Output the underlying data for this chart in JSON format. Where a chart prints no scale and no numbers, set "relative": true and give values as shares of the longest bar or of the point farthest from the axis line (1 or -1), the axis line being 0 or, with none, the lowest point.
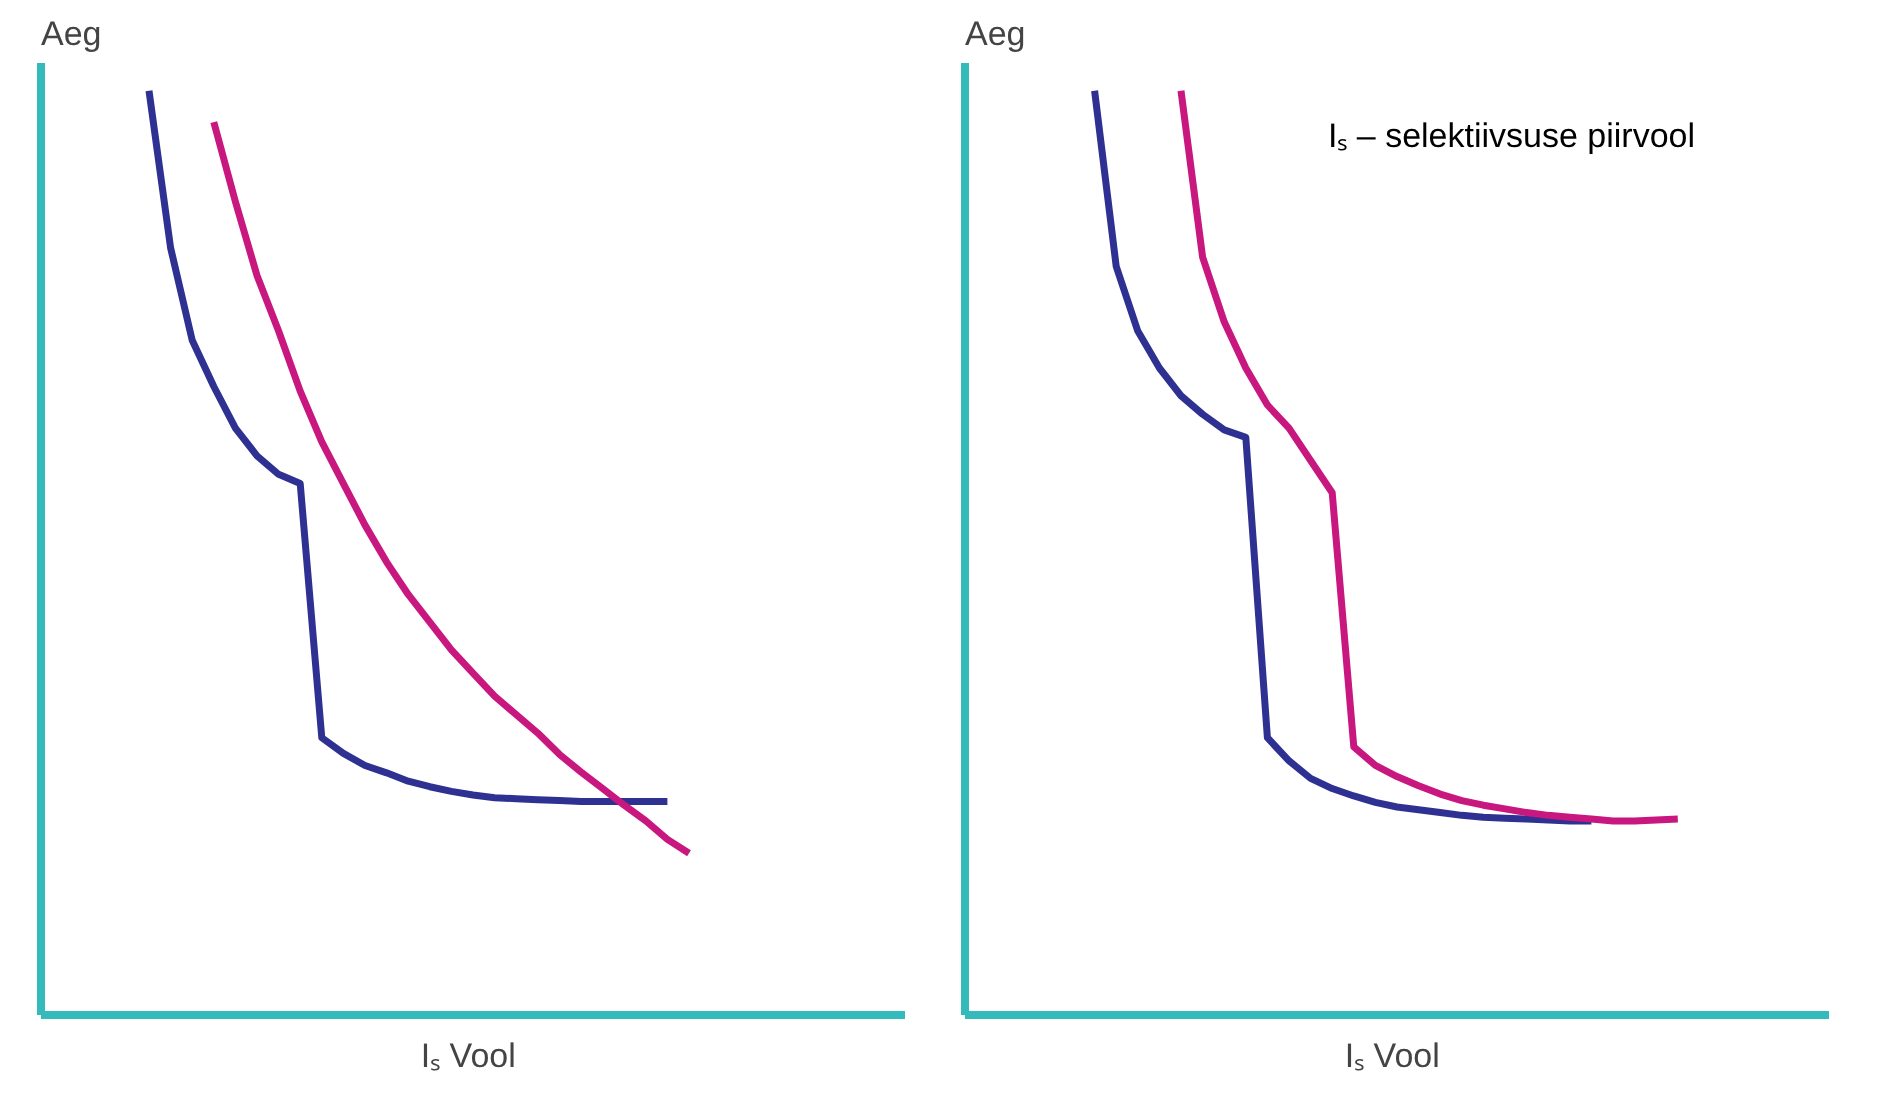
{
  "chart_data": [
    {
      "type": "line",
      "relative": true,
      "ylabel": "Aeg",
      "xlabel": "Iₛ  Vool",
      "tick_labels": false,
      "categories": [
        null,
        null,
        null,
        null,
        null,
        null,
        null,
        null,
        null,
        null,
        null,
        null,
        null,
        null,
        null,
        null,
        null,
        null,
        null,
        null,
        null,
        null,
        null,
        null,
        null,
        null,
        null,
        null,
        null,
        null,
        null,
        null,
        null,
        null,
        null,
        null,
        null,
        null,
        null,
        null,
        null
      ],
      "series": [
        {
          "color": "#2e3192",
          "values": [
            null,
            null,
            null,
            null,
            null,
            1,
            0.83,
            0.73,
            0.68,
            0.635,
            0.605,
            0.585,
            0.575,
            0.3,
            0.283,
            0.27,
            0.262,
            0.253,
            0.247,
            0.242,
            0.238,
            0.235,
            0.234,
            0.233,
            0.232,
            0.231,
            0.231,
            0.231,
            0.231,
            0.231,
            null,
            null,
            null,
            null,
            null,
            null,
            null,
            null,
            null,
            null,
            null
          ]
        },
        {
          "color": "#c8177f",
          "values": [
            null,
            null,
            null,
            null,
            null,
            null,
            null,
            null,
            0.966,
            0.88,
            0.8,
            0.74,
            0.675,
            0.62,
            0.575,
            0.53,
            0.49,
            0.455,
            0.425,
            0.395,
            0.37,
            0.345,
            0.325,
            0.305,
            0.282,
            0.263,
            0.245,
            0.227,
            0.21,
            0.19,
            0.175,
            null,
            null,
            null,
            null,
            null,
            null,
            null,
            null,
            null,
            null
          ]
        }
      ]
    },
    {
      "type": "line",
      "relative": true,
      "ylabel": "Aeg",
      "xlabel": "Iₛ  Vool",
      "tick_labels": false,
      "annotations": [
        "Iₛ – selektiivsuse piirvool"
      ],
      "categories": [
        null,
        null,
        null,
        null,
        null,
        null,
        null,
        null,
        null,
        null,
        null,
        null,
        null,
        null,
        null,
        null,
        null,
        null,
        null,
        null,
        null,
        null,
        null,
        null,
        null,
        null,
        null,
        null,
        null,
        null,
        null,
        null,
        null,
        null,
        null,
        null,
        null,
        null,
        null,
        null,
        null
      ],
      "series": [
        {
          "color": "#2e3192",
          "values": [
            null,
            null,
            null,
            null,
            null,
            null,
            1,
            0.81,
            0.74,
            0.7,
            0.67,
            0.65,
            0.633,
            0.625,
            0.3,
            0.275,
            0.256,
            0.245,
            0.237,
            0.23,
            0.225,
            0.222,
            0.219,
            0.216,
            0.214,
            0.213,
            0.212,
            0.211,
            0.21,
            0.21,
            null,
            null,
            null,
            null,
            null,
            null,
            null,
            null,
            null,
            null,
            null
          ]
        },
        {
          "color": "#c8177f",
          "values": [
            null,
            null,
            null,
            null,
            null,
            null,
            null,
            null,
            null,
            null,
            1,
            0.82,
            0.75,
            0.7,
            0.66,
            0.635,
            0.6,
            0.565,
            0.29,
            0.27,
            0.258,
            0.248,
            0.239,
            0.232,
            0.227,
            0.223,
            0.219,
            0.216,
            0.214,
            0.212,
            0.21,
            0.21,
            0.211,
            0.212,
            null,
            null,
            null,
            null,
            null,
            null,
            null
          ]
        }
      ]
    }
  ]
}
